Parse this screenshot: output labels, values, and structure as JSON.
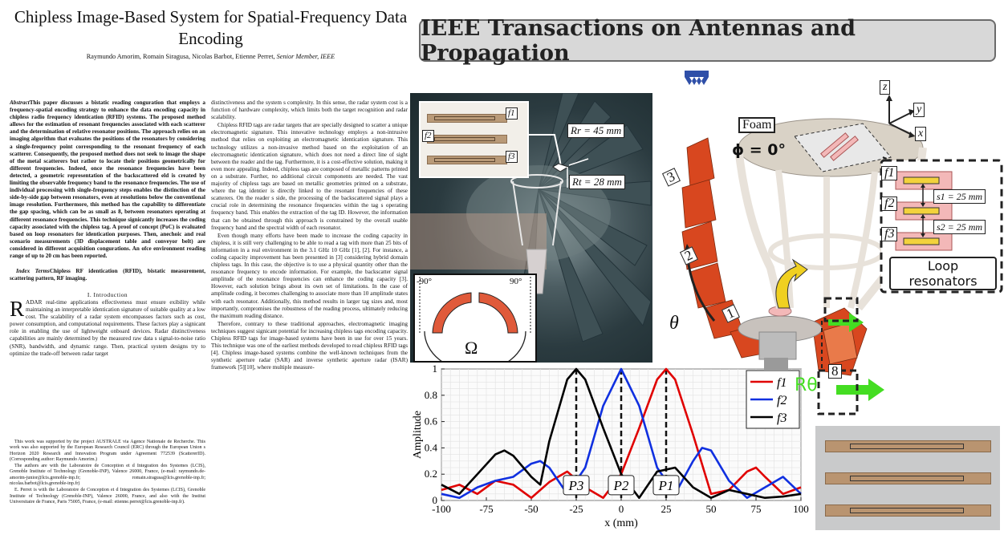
{
  "paper": {
    "title": "Chipless Image-Based System for Spatial-Frequency Data Encoding",
    "authors": "Raymundo Amorim, Romain Siragusa, Nicolas Barbot, Etienne Perret, ",
    "authors_suffix": "Senior Member, IEEE",
    "abstract_label": "Abstract",
    "abstract": "This paper discusses a bistatic reading conguration that employs a frequency-spatial encoding strategy to enhance the data encoding capacity in chipless radio frequency identication (RFID) systems. The proposed method allows for the estimation of resonant frequencies associated with each scatterer and the determination of relative resonator positions. The approach relies on an imaging algorithm that evaluates the positions of the resonators by considering a single-frequency point corresponding to the resonant frequency of each scatterer. Consequently, the proposed method does not seek to image the shape of the metal scatterers but rather to locate their positions geometrically for different frequencies. Indeed, once the resonance frequencies have been detected, a geometric representation of the backscattered eld is created by limiting the observable frequency band to the resonance frequencies. The use of individual processing with single-frequency steps enables the distinction of the side-by-side gap between resonators, even at resolutions below the conventional image resolution. Furthermore, this method has the capability to differentiate the gap spacing, which can be as small as 8, between resonators operating at different resonance frequencies. This technique signicantly increases the coding capacity associated with the chipless tag. A proof of concept (PoC) is evaluated based on loop resonators for identication purposes. Then, anechoic and real scenario measurements (3D displacement table and conveyor belt) are considered in different acquisition congurations. An ofce environment reading range of up to 20 cm has been reported.",
    "index_label": "Index Terms",
    "index_terms": "Chipless RF identication (RFID), bistatic measurement, scattering pattern, RF imaging.",
    "intro_heading": "I. Introduction",
    "dropcap": "R",
    "intro_text": "ADAR real-time applications effectiveness must ensure exibility while maintaining an interpretable identication signature of suitable quality at a low cost. The scalability of a radar system encompasses factors such as cost, power consumption, and computational requirements. These factors play a signicant role in enabling the use of lightweight onboard devices. Radar distinctiveness capabilities are mainly determined by the measured raw data s signal-to-noise ratio (SNR), bandwidth, and dynamic range. Then, practical system designs try to optimize the trade-off between radar target",
    "footnotes": [
      "This work was supported by the project AUSTRALE via Agence Nationale de Recherche. This work was also supported by the European Research Council (ERC) through the European Union s Horizon 2020 Research and Innovation Program under Agreement 772539 (ScattererID). (Corresponding author: Raymundo Amorim.)",
      "The authors are with the Laboratoire de Conception et d Integration des Systemes (LCIS), Grenoble Institute of Technology (Grenoble-INP), Valence 26000, France, (e-mail: raymundo.de-amorim-junior@lcis.grenoble-inp.fr; romain.siragusa@lcis.grenoble-inp.fr; nicolas.barbot@lcis.grenoble-inp.fr)",
      "E. Perret is with the Laboratoire de Conception et d Integration des Systemes (LCIS), Grenoble Institute of Technology (Grenoble-INP), Valence 26000, France, and also with the Institut Universitaire de France, Paris 75005, France, (e-mail: etienne.perret@lcis.grenoble-inp.fr)."
    ],
    "right_col": [
      "distinctiveness and the system s complexity. In this sense, the radar system cost is a function of hardware complexity, which limits both the target recognition and radar scalability.",
      "Chipless RFID tags are radar targets that are specially designed to scatter a unique electromagnetic signature. This innovative technology employs a non-intrusive method that relies on exploiting an electromagnetic identication signature. This technology utilizes a non-invasive method based on the exploitation of an electromagnetic identication signature, which does not need a direct line of sight between the reader and the tag. Furthermore, it is a cost-effective solution, making it even more appealing. Indeed, chipless tags are composed of metallic patterns printed on a substrate. Further, no additional circuit components are needed. The vast majority of chipless tags are based on metallic geometries printed on a substrate, where the tag identier is directly linked to the resonant frequencies of these scatterers. On the reader s side, the processing of the backscattered signal plays a crucial role in determining the resonance frequencies within the tag s operating frequency band. This enables the extraction of the tag ID. However, the information that can be obtained through this approach is constrained by the overall usable frequency band and the spectral width of each resonator.",
      "Even though many efforts have been made to increase the coding capacity in chipless, it is still very challenging to be able to read a tag with more than 25 bits of information in a real environment in the 3.1 GHz 10 GHz [1], [2]. For instance, a coding capacity improvement has been presented in [3] considering hybrid domain chipless tags. In this case, the objective is to use a physical quantity other than the resonance frequency to encode information. For example, the backscatter signal amplitude of the resonance frequencies can enhance the coding capacity [3]. However, each solution brings about its own set of limitations. In the case of amplitude coding, it becomes challenging to associate more than 10 amplitude states with each resonator. Additionally, this method results in larger tag sizes and, most importantly, compromises the robustness of the reading process, ultimately reducing the maximum reading distance.",
      "Therefore, contrary to these traditional approaches, electromagnetic imaging techniques suggest signicant potential for increasing chipless tags encoding capacity. Chipless RFID tags for image-based systems have been in use for over 15 years. This technique was one of the earliest methods developed to read chipless RFID tags [4]. Chipless image-based systems combine the well-known techniques from the synthetic aperture radar (SAR) and inverse synthetic aperture radar (ISAR) framework [5][10], where multiple measure-"
    ]
  },
  "banner": {
    "text": "IEEE Transactions on Antennas and Propagation"
  },
  "photo": {
    "f1": "f1",
    "f2": "f2",
    "f3": "f3",
    "rr_label": "Rr = 45 mm",
    "rt_label": "Rt = 28 mm",
    "angle_min": "-90°",
    "angle_max": "90°",
    "omega": "Ω"
  },
  "diagram": {
    "foam": "Foam",
    "phi": "ϕ = 0°",
    "z": "z",
    "y": "y",
    "x": "x",
    "n3": "3",
    "n2": "2",
    "n1": "1",
    "n8": "8",
    "theta": "θ",
    "r_theta": "Rθ",
    "f1": "f1",
    "f2": "f2",
    "f3": "f3",
    "s1": "s1 = 25 mm",
    "s2": "s2 = 25 mm",
    "loop_line1": "Loop",
    "loop_line2": "resonators",
    "colors": {
      "arrow_green": "#44dd22",
      "arrow_yellow": "#f0d020",
      "tag_pink": "#f3b8b8",
      "resonator_yellow": "#f3d23c",
      "wedge_red": "#d8471f"
    }
  },
  "chart_data": {
    "type": "line",
    "xlabel": "x (mm)",
    "ylabel": "Amplitude",
    "xlim": [
      -100,
      100
    ],
    "ylim": [
      0,
      1
    ],
    "xticks": [
      -100,
      -75,
      -50,
      -25,
      0,
      25,
      50,
      75,
      100
    ],
    "yticks": [
      0,
      0.2,
      0.4,
      0.6,
      0.8,
      1
    ],
    "legend_position": "top-right",
    "series": [
      {
        "name": "f1",
        "color": "#e00000",
        "peak": 25,
        "x": [
          -100,
          -90,
          -80,
          -70,
          -60,
          -50,
          -40,
          -30,
          -20,
          -10,
          0,
          10,
          20,
          25,
          30,
          40,
          50,
          60,
          70,
          75,
          80,
          90,
          100
        ],
        "y": [
          0.08,
          0.12,
          0.05,
          0.15,
          0.12,
          0.02,
          0.14,
          0.22,
          0.1,
          0.02,
          0.2,
          0.55,
          0.92,
          1.0,
          0.92,
          0.5,
          0.05,
          0.08,
          0.22,
          0.25,
          0.18,
          0.05,
          0.1
        ]
      },
      {
        "name": "f2",
        "color": "#1030e0",
        "peak": 0,
        "x": [
          -100,
          -90,
          -80,
          -70,
          -60,
          -50,
          -45,
          -40,
          -30,
          -20,
          -10,
          0,
          10,
          20,
          30,
          40,
          45,
          50,
          60,
          70,
          80,
          90,
          100
        ],
        "y": [
          0.05,
          0.02,
          0.1,
          0.15,
          0.18,
          0.28,
          0.3,
          0.25,
          0.05,
          0.25,
          0.72,
          1.0,
          0.72,
          0.25,
          0.05,
          0.3,
          0.4,
          0.38,
          0.15,
          0.02,
          0.1,
          0.18,
          0.05
        ]
      },
      {
        "name": "f3",
        "color": "#000000",
        "peak": -25,
        "x": [
          -100,
          -90,
          -80,
          -70,
          -65,
          -60,
          -50,
          -45,
          -40,
          -30,
          -25,
          -20,
          -10,
          0,
          10,
          20,
          30,
          40,
          50,
          60,
          70,
          80,
          90,
          100
        ],
        "y": [
          0.12,
          0.05,
          0.2,
          0.35,
          0.38,
          0.34,
          0.18,
          0.12,
          0.45,
          0.92,
          1.0,
          0.92,
          0.55,
          0.2,
          0.02,
          0.22,
          0.25,
          0.1,
          0.02,
          0.08,
          0.05,
          0.02,
          0.03,
          0.05
        ]
      }
    ],
    "markers": [
      {
        "label": "P3",
        "x": -25
      },
      {
        "label": "P2",
        "x": 0
      },
      {
        "label": "P1",
        "x": 25
      }
    ]
  }
}
